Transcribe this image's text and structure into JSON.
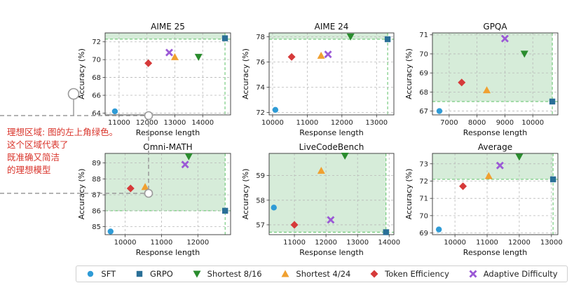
{
  "chart_data": [
    {
      "type": "scatter",
      "title": "AIME 25",
      "xlabel": "Response length",
      "ylabel": "Accuracy (%)",
      "xlim": [
        10500,
        15000
      ],
      "ylim": [
        63.8,
        73.0
      ],
      "xticks": [
        11000,
        12000,
        13000,
        14000
      ],
      "yticks": [
        64,
        66,
        68,
        70,
        72
      ],
      "region": {
        "x": [
          10500,
          14800
        ],
        "y": [
          72.3,
          73.0
        ]
      },
      "points": [
        {
          "series": "SFT",
          "x": 10850,
          "y": 64.2
        },
        {
          "series": "GRPO",
          "x": 14800,
          "y": 72.4
        },
        {
          "series": "Shortest 8/16",
          "x": 13850,
          "y": 70.3
        },
        {
          "series": "Shortest 4/24",
          "x": 13000,
          "y": 70.3
        },
        {
          "series": "Token Efficiency",
          "x": 12050,
          "y": 69.6
        },
        {
          "series": "Adaptive Difficulty",
          "x": 12800,
          "y": 70.8
        }
      ]
    },
    {
      "type": "scatter",
      "title": "AIME 24",
      "xlabel": "Response length",
      "ylabel": "Accuracy (%)",
      "xlim": [
        9900,
        13500
      ],
      "ylim": [
        71.8,
        78.3
      ],
      "xticks": [
        10000,
        11000,
        12000,
        13000
      ],
      "yticks": [
        72,
        74,
        76,
        78
      ],
      "region": {
        "x": [
          9900,
          13320
        ],
        "y": [
          77.8,
          78.3
        ]
      },
      "points": [
        {
          "series": "SFT",
          "x": 10080,
          "y": 72.2
        },
        {
          "series": "GRPO",
          "x": 13320,
          "y": 77.8
        },
        {
          "series": "Shortest 8/16",
          "x": 12250,
          "y": 78.0
        },
        {
          "series": "Shortest 4/24",
          "x": 11400,
          "y": 76.5
        },
        {
          "series": "Token Efficiency",
          "x": 10550,
          "y": 76.4
        },
        {
          "series": "Adaptive Difficulty",
          "x": 11600,
          "y": 76.6
        }
      ]
    },
    {
      "type": "scatter",
      "title": "GPQA",
      "xlabel": "Response length",
      "ylabel": "Accuracy (%)",
      "xlim": [
        6400,
        10900
      ],
      "ylim": [
        66.8,
        71.1
      ],
      "xticks": [
        7000,
        8000,
        9000,
        10000
      ],
      "yticks": [
        67,
        68,
        69,
        70,
        71
      ],
      "region": {
        "x": [
          6400,
          10700
        ],
        "y": [
          67.5,
          71.1
        ]
      },
      "points": [
        {
          "series": "SFT",
          "x": 6650,
          "y": 67.0
        },
        {
          "series": "GRPO",
          "x": 10700,
          "y": 67.5
        },
        {
          "series": "Shortest 8/16",
          "x": 9700,
          "y": 70.0
        },
        {
          "series": "Shortest 4/24",
          "x": 8350,
          "y": 68.1
        },
        {
          "series": "Token Efficiency",
          "x": 7450,
          "y": 68.5
        },
        {
          "series": "Adaptive Difficulty",
          "x": 9000,
          "y": 70.8
        }
      ]
    },
    {
      "type": "scatter",
      "title": "Omni-MATH",
      "xlabel": "Response length",
      "ylabel": "Accuracy (%)",
      "xlim": [
        9450,
        12900
      ],
      "ylim": [
        84.5,
        89.6
      ],
      "xticks": [
        10000,
        11000,
        12000
      ],
      "yticks": [
        85,
        86,
        87,
        88,
        89
      ],
      "region": {
        "x": [
          9450,
          12750
        ],
        "y": [
          86.0,
          89.6
        ]
      },
      "points": [
        {
          "series": "SFT",
          "x": 9600,
          "y": 84.7
        },
        {
          "series": "GRPO",
          "x": 12750,
          "y": 86.0
        },
        {
          "series": "Shortest 8/16",
          "x": 11750,
          "y": 89.4
        },
        {
          "series": "Shortest 4/24",
          "x": 10550,
          "y": 87.5
        },
        {
          "series": "Token Efficiency",
          "x": 10150,
          "y": 87.4
        },
        {
          "series": "Adaptive Difficulty",
          "x": 11650,
          "y": 88.9
        }
      ]
    },
    {
      "type": "scatter",
      "title": "LiveCodeBench",
      "xlabel": "Response length",
      "ylabel": "Accuracy (%)",
      "xlim": [
        10200,
        14150
      ],
      "ylim": [
        56.6,
        59.9
      ],
      "xticks": [
        10000,
        11000,
        12000,
        13000,
        14000
      ],
      "yticks": [
        57,
        58,
        59
      ],
      "region": {
        "x": [
          10200,
          13900
        ],
        "y": [
          56.7,
          59.9
        ]
      },
      "points": [
        {
          "series": "SFT",
          "x": 10350,
          "y": 57.7
        },
        {
          "series": "GRPO",
          "x": 13900,
          "y": 56.7
        },
        {
          "series": "Shortest 8/16",
          "x": 12600,
          "y": 59.8
        },
        {
          "series": "Shortest 4/24",
          "x": 11850,
          "y": 59.2
        },
        {
          "series": "Token Efficiency",
          "x": 11000,
          "y": 57.0
        },
        {
          "series": "Adaptive Difficulty",
          "x": 12150,
          "y": 57.2
        }
      ]
    },
    {
      "type": "scatter",
      "title": "Average",
      "xlabel": "Response length",
      "ylabel": "Accuracy (%)",
      "xlim": [
        9300,
        13200
      ],
      "ylim": [
        68.9,
        73.6
      ],
      "xticks": [
        9000,
        10000,
        11000,
        12000,
        13000
      ],
      "yticks": [
        69,
        70,
        71,
        72,
        73
      ],
      "region": {
        "x": [
          9300,
          13050
        ],
        "y": [
          72.1,
          73.6
        ]
      },
      "points": [
        {
          "series": "SFT",
          "x": 9500,
          "y": 69.2
        },
        {
          "series": "GRPO",
          "x": 13050,
          "y": 72.1
        },
        {
          "series": "Shortest 8/16",
          "x": 12000,
          "y": 73.4
        },
        {
          "series": "Shortest 4/24",
          "x": 11050,
          "y": 72.3
        },
        {
          "series": "Token Efficiency",
          "x": 10250,
          "y": 71.7
        },
        {
          "series": "Adaptive Difficulty",
          "x": 11400,
          "y": 72.9
        }
      ]
    }
  ],
  "legend": [
    {
      "label": "SFT",
      "marker": "circle",
      "color": "#2f9bd6"
    },
    {
      "label": "GRPO",
      "marker": "square",
      "color": "#2a6f97"
    },
    {
      "label": "Shortest 8/16",
      "marker": "triangle-down",
      "color": "#2a8c2e"
    },
    {
      "label": "Shortest 4/24",
      "marker": "triangle-up",
      "color": "#f0a030"
    },
    {
      "label": "Token Efficiency",
      "marker": "diamond",
      "color": "#d63a3a"
    },
    {
      "label": "Adaptive Difficulty",
      "marker": "x",
      "color": "#9b59d6"
    }
  ],
  "annotation": {
    "lines": [
      "理想区域: 图的左上角绿色。",
      "这个区域代表了",
      "既准确又简洁",
      "的理想模型"
    ],
    "color": "#d9342b"
  },
  "colors": {
    "region_fill": "#d6ecd9",
    "region_edge": "#5cc266",
    "grid": "#b8b8b8",
    "callout": "#9a9a9a"
  }
}
